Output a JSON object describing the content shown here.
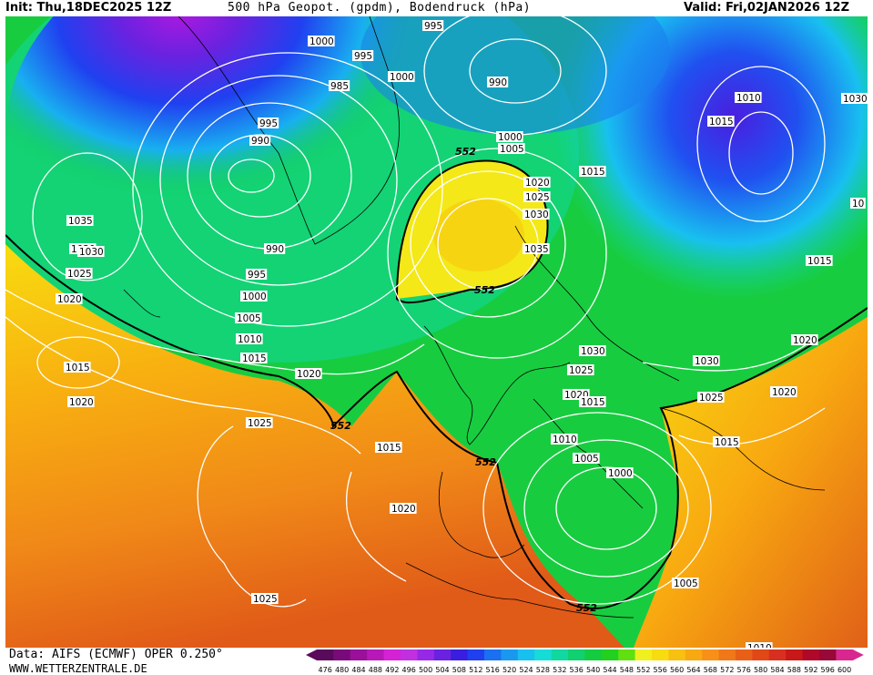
{
  "header": {
    "init": "Init: Thu,18DEC2025 12Z",
    "title": "500 hPa Geopot. (gpdm), Bodendruck (hPa)",
    "valid": "Valid: Fri,02JAN2026 12Z"
  },
  "footer": {
    "data_source": "Data: AIFS (ECMWF) OPER 0.250°",
    "website": "WWW.WETTERZENTRALE.DE"
  },
  "colorbar": {
    "values": [
      "476",
      "480",
      "484",
      "488",
      "492",
      "496",
      "500",
      "504",
      "508",
      "512",
      "516",
      "520",
      "524",
      "528",
      "532",
      "536",
      "540",
      "544",
      "548",
      "552",
      "556",
      "560",
      "564",
      "568",
      "572",
      "576",
      "580",
      "584",
      "588",
      "592",
      "596",
      "600"
    ],
    "colors": [
      "#5a0a5a",
      "#7a0a7a",
      "#9a109a",
      "#b818b8",
      "#d422d4",
      "#c030e0",
      "#9828e8",
      "#6a22e0",
      "#3a1ee0",
      "#2040f0",
      "#1a70f0",
      "#1a98f0",
      "#18c0f0",
      "#16dcd8",
      "#10d8a0",
      "#10d070",
      "#14cc40",
      "#22d020",
      "#60e010",
      "#f0f020",
      "#f8dc10",
      "#f8c010",
      "#f8a810",
      "#f89018",
      "#f07818",
      "#e86018",
      "#e04818",
      "#d83020",
      "#c81818",
      "#b00828",
      "#980838",
      "#d82890"
    ]
  },
  "isobar_labels": [
    {
      "text": "1000"
    },
    {
      "text": "995"
    },
    {
      "text": "995"
    },
    {
      "text": "985"
    },
    {
      "text": "995"
    },
    {
      "text": "990"
    },
    {
      "text": "1000"
    },
    {
      "text": "990"
    },
    {
      "text": "1000"
    },
    {
      "text": "1005"
    },
    {
      "text": "1015"
    },
    {
      "text": "1020"
    },
    {
      "text": "1025"
    },
    {
      "text": "1030"
    },
    {
      "text": "1035"
    },
    {
      "text": "1020"
    },
    {
      "text": "1010"
    },
    {
      "text": "1015"
    },
    {
      "text": "1030"
    },
    {
      "text": "1035"
    },
    {
      "text": "1030"
    },
    {
      "text": "1025"
    },
    {
      "text": "1020"
    },
    {
      "text": "990"
    },
    {
      "text": "995"
    },
    {
      "text": "1000"
    },
    {
      "text": "1005"
    },
    {
      "text": "1010"
    },
    {
      "text": "1015"
    },
    {
      "text": "1020"
    },
    {
      "text": "1015"
    },
    {
      "text": "1020"
    },
    {
      "text": "1025"
    },
    {
      "text": "1015"
    },
    {
      "text": "1020"
    },
    {
      "text": "1030"
    },
    {
      "text": "1025"
    },
    {
      "text": "1020"
    },
    {
      "text": "1015"
    },
    {
      "text": "1010"
    },
    {
      "text": "1005"
    },
    {
      "text": "1000"
    },
    {
      "text": "1030"
    },
    {
      "text": "1025"
    },
    {
      "text": "1020"
    },
    {
      "text": "1015"
    },
    {
      "text": "1015"
    },
    {
      "text": "1020"
    },
    {
      "text": "1005"
    },
    {
      "text": "1025"
    },
    {
      "text": "1010"
    },
    {
      "text": "10"
    }
  ],
  "geopot_labels": [
    {
      "text": "552"
    },
    {
      "text": "552"
    },
    {
      "text": "552"
    },
    {
      "text": "552"
    },
    {
      "text": "552"
    }
  ]
}
